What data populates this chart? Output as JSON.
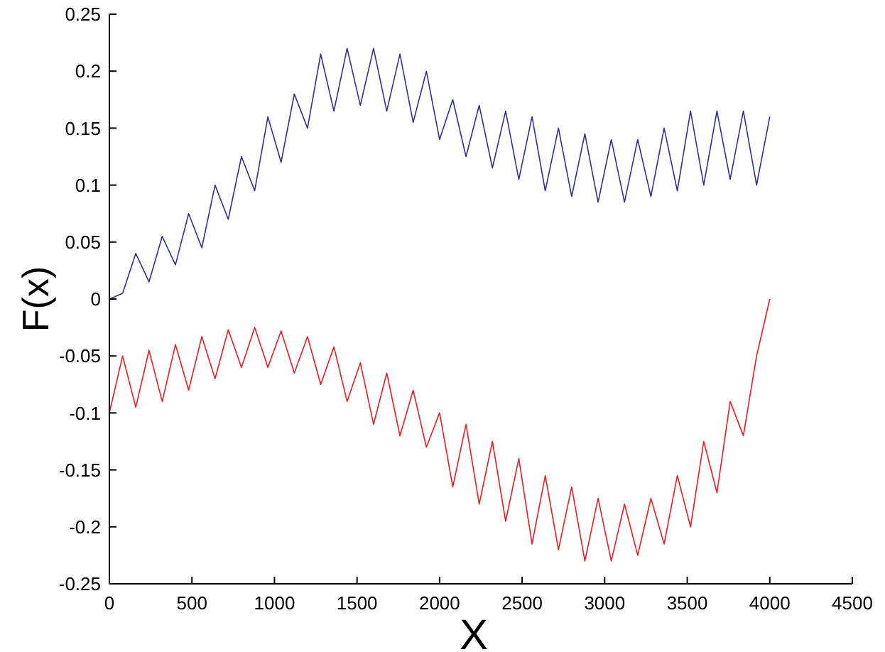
{
  "chart_data": {
    "type": "line",
    "xlabel": "X",
    "ylabel": "F(x)",
    "xlim": [
      0,
      4500
    ],
    "xticks": [
      0,
      500,
      1000,
      1500,
      2000,
      2500,
      3000,
      3500,
      4000,
      4500
    ],
    "ylim": [
      -0.25,
      0.25
    ],
    "yticks": [
      -0.25,
      -0.2,
      -0.15,
      -0.1,
      -0.05,
      0,
      0.05,
      0.1,
      0.15,
      0.2,
      0.25
    ],
    "grid": false,
    "line_style": "solid",
    "x": [
      0,
      80,
      160,
      240,
      320,
      400,
      480,
      560,
      640,
      720,
      800,
      880,
      960,
      1040,
      1120,
      1200,
      1280,
      1360,
      1440,
      1520,
      1600,
      1680,
      1760,
      1840,
      1920,
      2000,
      2080,
      2160,
      2240,
      2320,
      2400,
      2480,
      2560,
      2640,
      2720,
      2800,
      2880,
      2960,
      3040,
      3120,
      3200,
      3280,
      3360,
      3440,
      3520,
      3600,
      3680,
      3760,
      3840,
      3920,
      4000
    ],
    "series": [
      {
        "color": "#2e3192",
        "values": [
          0,
          0.005,
          0.04,
          0.015,
          0.055,
          0.03,
          0.075,
          0.045,
          0.1,
          0.07,
          0.125,
          0.095,
          0.16,
          0.12,
          0.18,
          0.15,
          0.215,
          0.165,
          0.22,
          0.17,
          0.22,
          0.165,
          0.215,
          0.155,
          0.2,
          0.14,
          0.175,
          0.125,
          0.17,
          0.115,
          0.165,
          0.105,
          0.16,
          0.095,
          0.15,
          0.09,
          0.145,
          0.085,
          0.14,
          0.085,
          0.14,
          0.09,
          0.15,
          0.095,
          0.165,
          0.1,
          0.165,
          0.105,
          0.165,
          0.1,
          0.16
        ]
      },
      {
        "color": "#ed1c24",
        "values": [
          -0.1,
          -0.05,
          -0.095,
          -0.045,
          -0.09,
          -0.04,
          -0.08,
          -0.033,
          -0.07,
          -0.027,
          -0.06,
          -0.025,
          -0.06,
          -0.028,
          -0.065,
          -0.033,
          -0.075,
          -0.042,
          -0.09,
          -0.056,
          -0.11,
          -0.065,
          -0.12,
          -0.08,
          -0.13,
          -0.1,
          -0.165,
          -0.11,
          -0.18,
          -0.125,
          -0.195,
          -0.14,
          -0.215,
          -0.155,
          -0.22,
          -0.165,
          -0.23,
          -0.175,
          -0.23,
          -0.18,
          -0.225,
          -0.175,
          -0.215,
          -0.155,
          -0.2,
          -0.125,
          -0.17,
          -0.09,
          -0.12,
          -0.05,
          0
        ]
      }
    ]
  }
}
